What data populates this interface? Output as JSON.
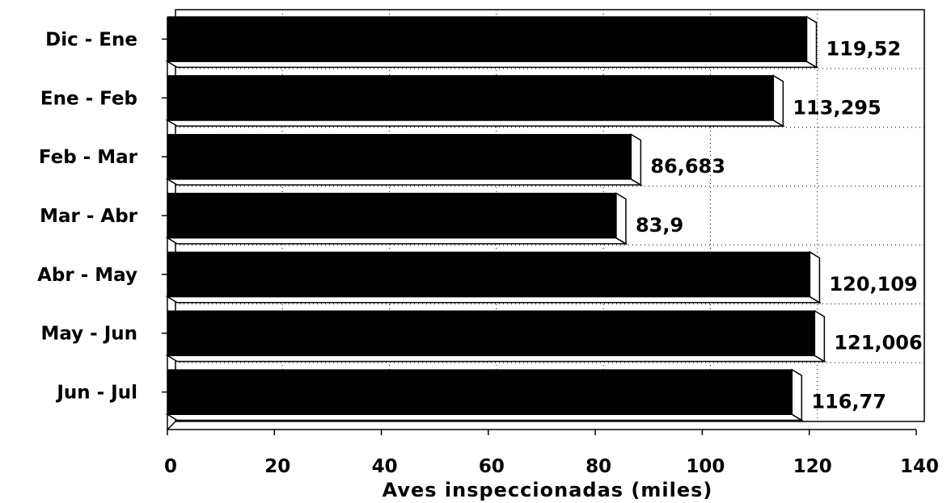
{
  "chart_data": {
    "type": "bar",
    "orientation": "horizontal",
    "categories": [
      "Dic - Ene",
      "Ene - Feb",
      "Feb - Mar",
      "Mar - Abr",
      "Abr - May",
      "May - Jun",
      "Jun - Jul"
    ],
    "values": [
      119.52,
      113.295,
      86.683,
      83.9,
      120.109,
      121.006,
      116.77
    ],
    "value_labels": [
      "119,52",
      "113,295",
      "86,683",
      "83,9",
      "120,109",
      "121,006",
      "116,77"
    ],
    "xlabel": "Aves inspeccionadas (miles)",
    "xlim": [
      0,
      140
    ],
    "xticks": [
      0,
      20,
      40,
      60,
      80,
      100,
      120,
      140
    ],
    "grid": true,
    "bar_color": "#000000",
    "style": "3d"
  }
}
